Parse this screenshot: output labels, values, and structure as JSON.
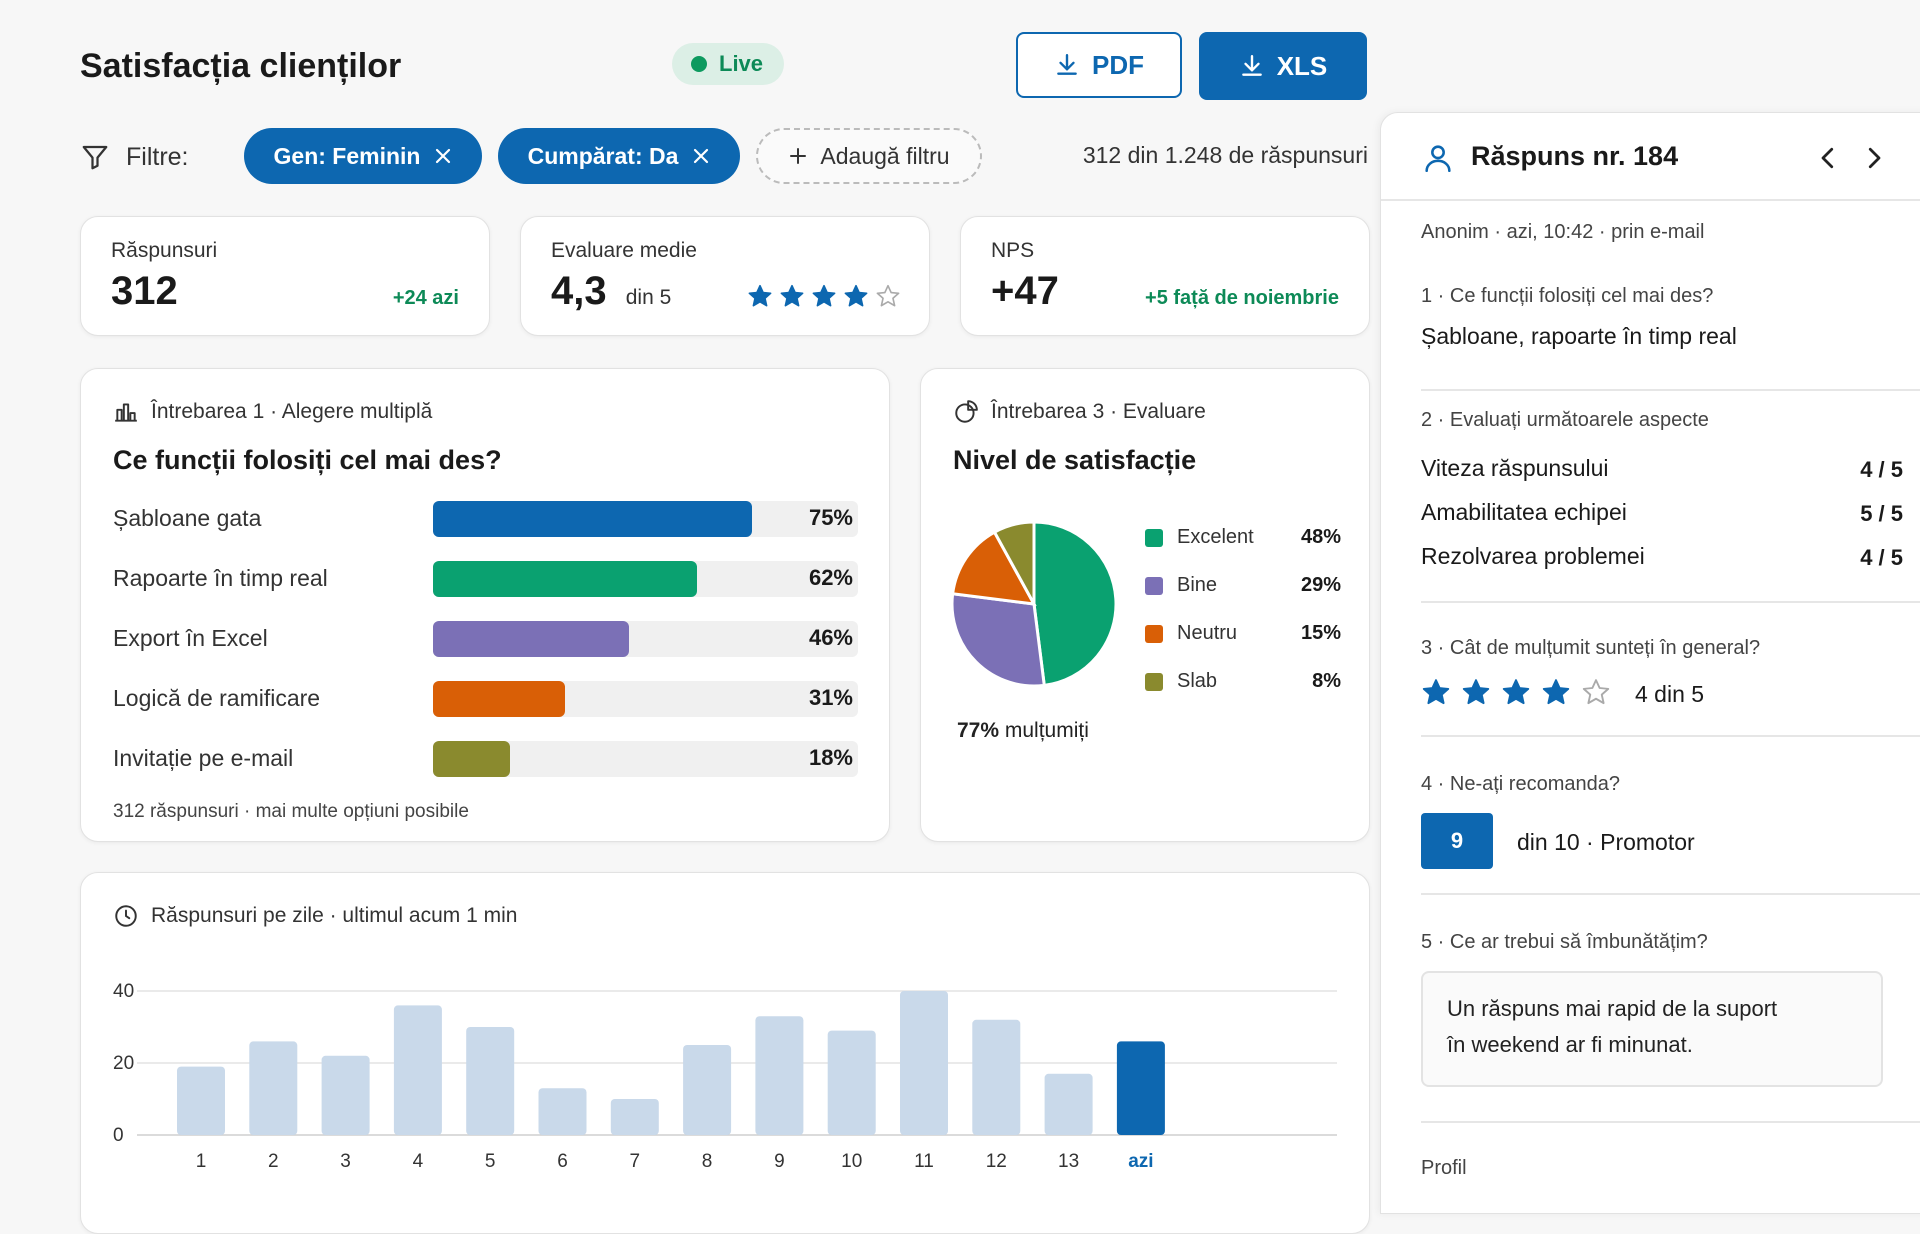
{
  "header": {
    "title": "Satisfacția clienților",
    "live_label": "Live",
    "pdf_label": "PDF",
    "xls_label": "XLS"
  },
  "filters": {
    "label": "Filtre:",
    "chips": [
      "Gen: Feminin",
      "Cumpărat: Da"
    ],
    "add_label": "Adaugă filtru",
    "count_text": "312 din 1.248 de răspunsuri"
  },
  "stats": {
    "responses": {
      "label": "Răspunsuri",
      "value": "312",
      "delta": "+24 azi"
    },
    "rating": {
      "label": "Evaluare medie",
      "value": "4,3",
      "suffix": "din 5",
      "stars_filled": 4,
      "stars_total": 5
    },
    "nps": {
      "label": "NPS",
      "value": "+47",
      "delta": "+5 față de noiembrie"
    }
  },
  "question1": {
    "head": "Întrebarea 1 · Alegere multiplă",
    "title": "Ce funcții folosiți cel mai des?",
    "footnote": "312 răspunsuri · mai multe opțiuni posibile"
  },
  "question3": {
    "head": "Întrebarea 3 · Evaluare",
    "title": "Nivel de satisfacție",
    "summary_value": "77%",
    "summary_text": "mulțumiți"
  },
  "daily": {
    "head": "Răspunsuri pe zile · ultimul acum 1 min"
  },
  "chart_data": [
    {
      "type": "bar",
      "orientation": "horizontal",
      "title": "Ce funcții folosiți cel mai des?",
      "categories": [
        "Șabloane gata",
        "Rapoarte în timp real",
        "Export în Excel",
        "Logică de ramificare",
        "Invitație pe e-mail"
      ],
      "values": [
        75,
        62,
        46,
        31,
        18
      ],
      "labels": [
        "75%",
        "62%",
        "46%",
        "31%",
        "18%"
      ],
      "colors": [
        "#0d67b0",
        "#0aa170",
        "#7b70b6",
        "#d95f06",
        "#8a8a2e"
      ],
      "xlim": [
        0,
        100
      ]
    },
    {
      "type": "pie",
      "title": "Nivel de satisfacție",
      "categories": [
        "Excelent",
        "Bine",
        "Neutru",
        "Slab"
      ],
      "values": [
        48,
        29,
        15,
        8
      ],
      "labels": [
        "48%",
        "29%",
        "15%",
        "8%"
      ],
      "colors": [
        "#0aa170",
        "#7b70b6",
        "#d95f06",
        "#8a8a2e"
      ]
    },
    {
      "type": "bar",
      "title": "Răspunsuri pe zile",
      "categories": [
        "1",
        "2",
        "3",
        "4",
        "5",
        "6",
        "7",
        "8",
        "9",
        "10",
        "11",
        "12",
        "13",
        "azi"
      ],
      "values": [
        19,
        26,
        22,
        36,
        30,
        13,
        10,
        25,
        33,
        29,
        40,
        32,
        17,
        26
      ],
      "yticks": [
        "0",
        "20",
        "40"
      ],
      "ylim": [
        0,
        40
      ],
      "bar_color": "#c9d9ea",
      "highlight_color": "#0d67b0",
      "highlight_index": 13
    }
  ],
  "panel": {
    "title": "Răspuns nr. 184",
    "meta": "Anonim · azi, 10:42 · prin e-mail",
    "q1": {
      "question": "1 · Ce funcții folosiți cel mai des?",
      "answer": "Șabloane, rapoarte în timp real"
    },
    "q2": {
      "question": "2 · Evaluați următoarele aspecte",
      "items": [
        {
          "label": "Viteza răspunsului",
          "score": "4 / 5"
        },
        {
          "label": "Amabilitatea echipei",
          "score": "5 / 5"
        },
        {
          "label": "Rezolvarea problemei",
          "score": "4 / 5"
        }
      ]
    },
    "q3": {
      "question": "3 · Cât de mulțumit sunteți în general?",
      "stars_filled": 4,
      "stars_total": 5,
      "answer": "4 din 5"
    },
    "q4": {
      "question": "4 · Ne-ați recomanda?",
      "score": "9",
      "answer": "din 10 · Promotor"
    },
    "q5": {
      "question": "5 · Ce ar trebui să îmbunătățim?",
      "line1": "Un răspuns mai rapid de la suport",
      "line2": "în weekend ar fi minunat."
    },
    "profile_label": "Profil"
  },
  "colors": {
    "accent": "#0d67b0",
    "positive": "#0d8a57",
    "star": "#0d67b0"
  }
}
